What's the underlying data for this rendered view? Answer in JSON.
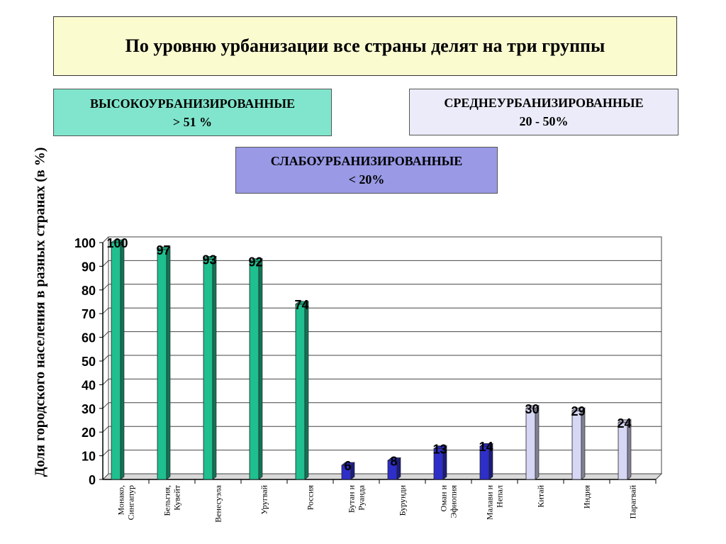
{
  "header": {
    "title": "По уровню урбанизации все страны делят на три группы"
  },
  "groups": {
    "high": {
      "name": "ВЫСОКОУРБАНИЗИРОВАННЫЕ",
      "range": "> 51 %",
      "color": "#80e5cc"
    },
    "mid": {
      "name": "СРЕДНЕУРБАНИЗИРОВАННЫЕ",
      "range": "20 - 50%",
      "color": "#ebebfa"
    },
    "low": {
      "name": "СЛАБОУРБАНИЗИРОВАННЫЕ",
      "range": "< 20%",
      "color": "#9999e6"
    }
  },
  "chart_data": {
    "type": "bar",
    "title": "",
    "xlabel": "",
    "ylabel": "Доля городского населения в разных странах (в %)",
    "ylim": [
      0,
      100
    ],
    "yticks": [
      0,
      10,
      20,
      30,
      40,
      50,
      60,
      70,
      80,
      90,
      100
    ],
    "grid": true,
    "categories": [
      [
        "Монако,",
        "Сингапур"
      ],
      [
        "Бельгия,",
        "Кувейт"
      ],
      [
        "Венесуэла"
      ],
      [
        "Уругвай"
      ],
      [
        "Россия"
      ],
      [
        "Бутан и",
        "Руанда"
      ],
      [
        "Бурунди"
      ],
      [
        "Оман и",
        "Эфиопия"
      ],
      [
        "Малави и",
        "Непал"
      ],
      [
        "Китай"
      ],
      [
        "Индия"
      ],
      [
        "Парагвай"
      ]
    ],
    "values": [
      100,
      97,
      93,
      92,
      74,
      6,
      8,
      13,
      14,
      30,
      29,
      24
    ],
    "bar_colors": [
      "#1fbf8f",
      "#1fbf8f",
      "#1fbf8f",
      "#1fbf8f",
      "#1fbf8f",
      "#2e2ec8",
      "#2e2ec8",
      "#2e2ec8",
      "#2e2ec8",
      "#d6d6f5",
      "#d6d6f5",
      "#d6d6f5"
    ]
  }
}
